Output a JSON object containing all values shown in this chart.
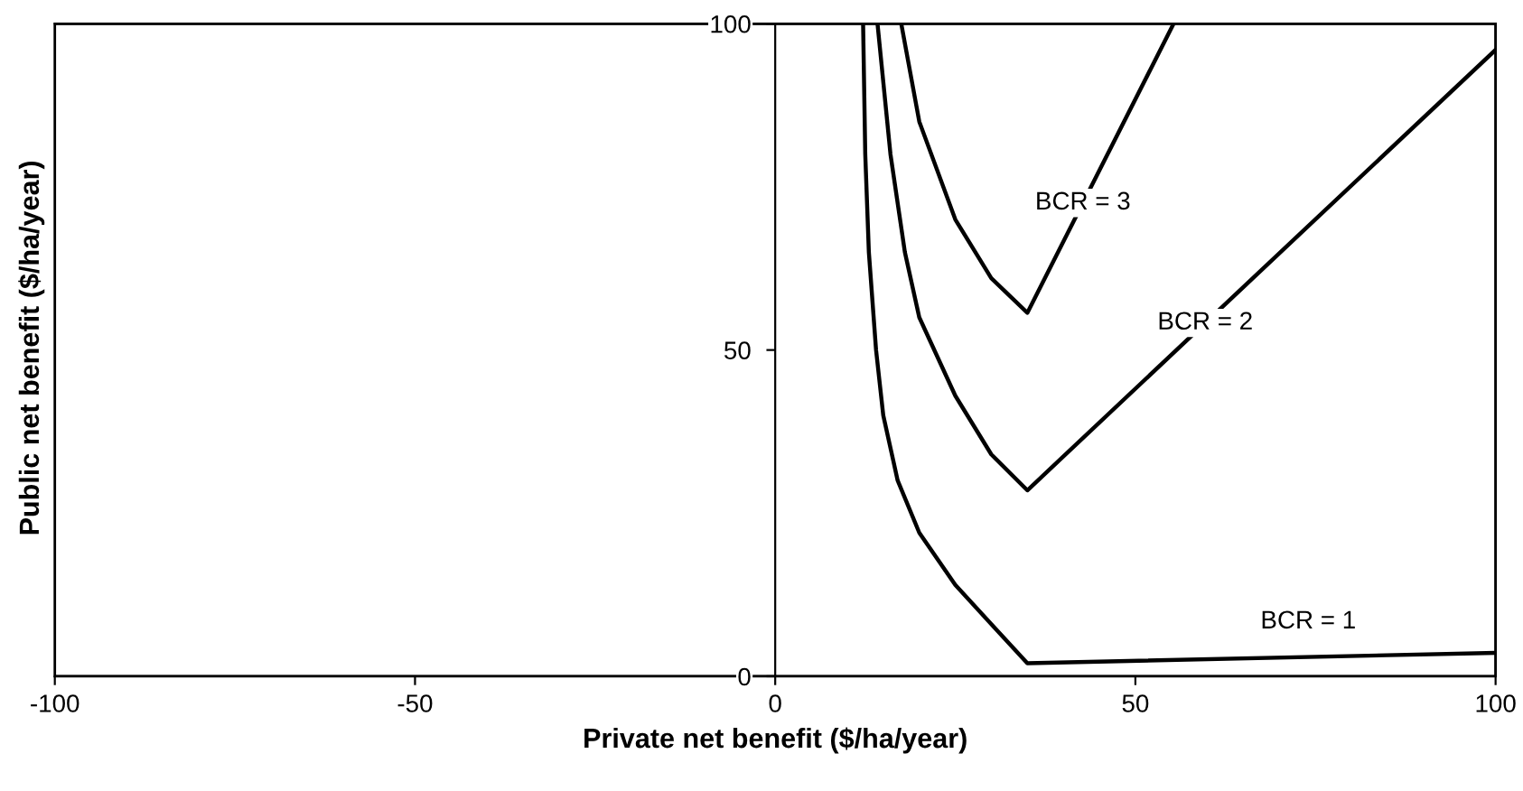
{
  "chart_data": {
    "type": "line",
    "xlabel": "Private net benefit ($/ha/year)",
    "ylabel": "Public net benefit ($/ha/year)",
    "xlim": [
      -100,
      100
    ],
    "ylim": [
      0,
      100
    ],
    "xticks": [
      -100,
      -50,
      0,
      50,
      100
    ],
    "yticks": [
      0,
      50,
      100
    ],
    "grid": false,
    "legend": false,
    "marker": "none",
    "line_style": "solid",
    "series": [
      {
        "name": "BCR = 1",
        "color": "#000000",
        "x": [
          12.2,
          12.5,
          13,
          14,
          15,
          17,
          20,
          25,
          30,
          35,
          100
        ],
        "values": [
          100,
          80,
          65,
          50,
          40,
          30,
          22,
          14,
          8,
          2,
          3.6
        ]
      },
      {
        "name": "BCR = 2",
        "color": "#000000",
        "x": [
          14.2,
          16,
          18,
          20,
          25,
          30,
          35,
          100
        ],
        "values": [
          100,
          80,
          65,
          55,
          43,
          34,
          28.5,
          96
        ]
      },
      {
        "name": "BCR = 3",
        "color": "#000000",
        "x": [
          17.5,
          20,
          25,
          30,
          35,
          55.3
        ],
        "values": [
          100,
          85,
          70,
          61,
          55.7,
          100
        ]
      }
    ]
  }
}
